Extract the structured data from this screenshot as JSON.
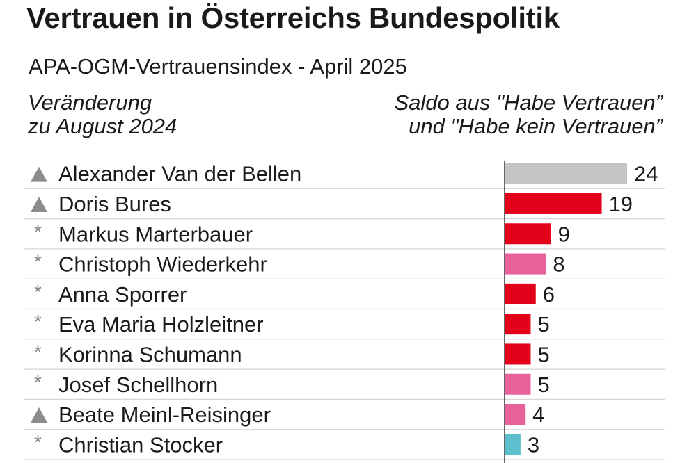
{
  "header": {
    "title": "Vertrauen in Österreichs Bundespolitik",
    "subtitle": "APA-OGM-Vertrauensindex - April 2025",
    "left_line1": "Veränderung",
    "left_line2": "zu August 2024",
    "right_line1": "Saldo aus \"Habe Vertrauen”",
    "right_line2": "und \"Habe kein Vertrauen”"
  },
  "chart_data": {
    "type": "bar",
    "orientation": "horizontal",
    "categories": [
      "Alexander Van der Bellen",
      "Doris Bures",
      "Markus Marterbauer",
      "Christoph Wiederkehr",
      "Anna Sporrer",
      "Eva Maria Holzleitner",
      "Korinna Schumann",
      "Josef Schellhorn",
      "Beate Meinl-Reisinger",
      "Christian Stocker"
    ],
    "values": [
      24,
      19,
      9,
      8,
      6,
      5,
      5,
      5,
      4,
      3
    ],
    "change_markers": [
      "▲",
      "▲",
      "*",
      "*",
      "*",
      "*",
      "*",
      "*",
      "▲",
      "*"
    ],
    "bar_colors": [
      "#c4c4c4",
      "#e2001a",
      "#e2001a",
      "#e8629a",
      "#e2001a",
      "#e2001a",
      "#e2001a",
      "#e8629a",
      "#e8629a",
      "#5bbfce"
    ],
    "xlim": [
      0,
      24
    ],
    "grid": false
  }
}
